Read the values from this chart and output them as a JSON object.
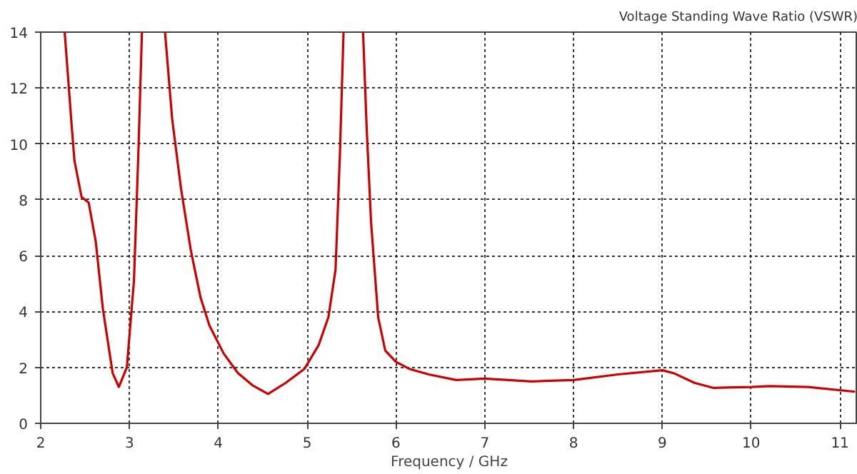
{
  "chart_data": {
    "type": "line",
    "title": "Voltage Standing Wave Ratio (VSWR)",
    "xlabel": "Frequency / GHz",
    "x": [
      2.27,
      2.35,
      2.38,
      2.46,
      2.54,
      2.62,
      2.7,
      2.81,
      2.88,
      2.97,
      3.05,
      3.1,
      3.14,
      3.27,
      3.4,
      3.48,
      3.58,
      3.69,
      3.8,
      3.9,
      4.06,
      4.22,
      4.39,
      4.56,
      4.76,
      4.97,
      5.13,
      5.24,
      5.32,
      5.37,
      5.41,
      5.52,
      5.63,
      5.67,
      5.72,
      5.8,
      5.88,
      6.0,
      6.15,
      6.37,
      6.68,
      7.0,
      7.53,
      8.0,
      8.5,
      9.0,
      9.14,
      9.36,
      9.57,
      10.0,
      10.21,
      10.64,
      11.17
    ],
    "series": [
      {
        "color": "#cc0000",
        "values": [
          14,
          10.6,
          9.4,
          8.1,
          7.9,
          6.5,
          4.1,
          1.8,
          1.3,
          2.0,
          5.1,
          9.7,
          14,
          null,
          14,
          10.9,
          8.4,
          6.2,
          4.5,
          3.5,
          2.5,
          1.8,
          1.35,
          1.05,
          1.45,
          1.95,
          2.8,
          3.8,
          5.5,
          9.7,
          14,
          null,
          14,
          10.6,
          7.2,
          3.8,
          2.6,
          2.2,
          1.95,
          1.75,
          1.55,
          1.6,
          1.5,
          1.55,
          1.75,
          1.9,
          1.78,
          1.45,
          1.27,
          1.3,
          1.33,
          1.3,
          1.13
        ]
      }
    ],
    "xlim": [
      2,
      11.2
    ],
    "ylim": [
      0,
      14
    ],
    "xticks": [
      2,
      3,
      4,
      5,
      6,
      7,
      8,
      9,
      10,
      11
    ],
    "yticks": [
      0,
      2,
      4,
      6,
      8,
      10,
      12,
      14
    ],
    "grid": true,
    "marker": "none",
    "line_style": "solid"
  }
}
